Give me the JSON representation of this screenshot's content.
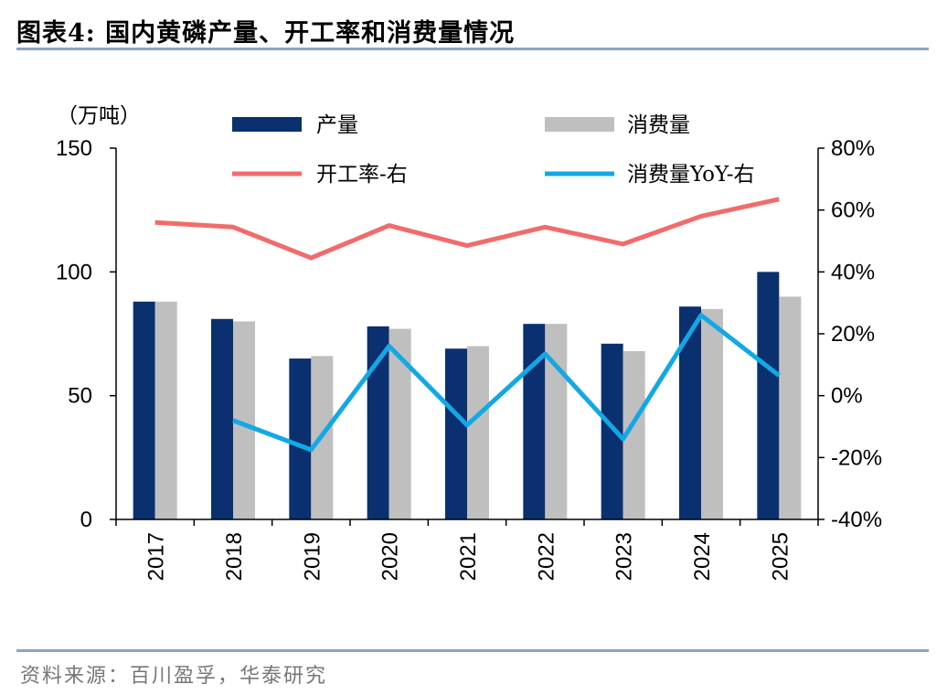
{
  "header": {
    "title": "图表4:   国内黄磷产量、开工率和消费量情况"
  },
  "source": {
    "text": "资料来源：百川盈孚，华泰研究"
  },
  "chart_data": {
    "type": "bar",
    "title": "国内黄磷产量、开工率和消费量情况",
    "categories": [
      "2017",
      "2018",
      "2019",
      "2020",
      "2021",
      "2022",
      "2023",
      "2024",
      "2025"
    ],
    "left_axis": {
      "unit_label": "（万吨）",
      "range": [
        0,
        150
      ],
      "ticks": [
        0,
        50,
        100,
        150
      ],
      "tick_labels": [
        "0",
        "50",
        "100",
        "150"
      ]
    },
    "right_axis": {
      "range": [
        -40,
        80
      ],
      "ticks": [
        -40,
        -20,
        0,
        20,
        40,
        60,
        80
      ],
      "tick_labels": [
        "-40%",
        "-20%",
        "0%",
        "20%",
        "40%",
        "60%",
        "80%"
      ]
    },
    "series": [
      {
        "name": "产量",
        "kind": "bar",
        "axis": "left",
        "color": "#0a3070",
        "values": [
          88,
          81,
          65,
          78,
          69,
          79,
          71,
          86,
          100
        ]
      },
      {
        "name": "消费量",
        "kind": "bar",
        "axis": "left",
        "color": "#bfbfbf",
        "values": [
          88,
          80,
          66,
          77,
          70,
          79,
          68,
          85,
          90
        ]
      },
      {
        "name": "开工率-右",
        "kind": "line",
        "axis": "right",
        "color": "#f26b6b",
        "values": [
          56,
          54.5,
          44.5,
          55,
          48.5,
          54.5,
          49,
          58,
          63.5
        ]
      },
      {
        "name": "消费量YoY-右",
        "kind": "line",
        "axis": "right",
        "color": "#12a8e6",
        "values": [
          null,
          -8,
          -17.5,
          16,
          -9.5,
          13.5,
          -14,
          26,
          6.5
        ]
      }
    ],
    "legend": {
      "position": "top",
      "labels": [
        "产量",
        "消费量",
        "开工率-右",
        "消费量YoY-右"
      ]
    }
  }
}
